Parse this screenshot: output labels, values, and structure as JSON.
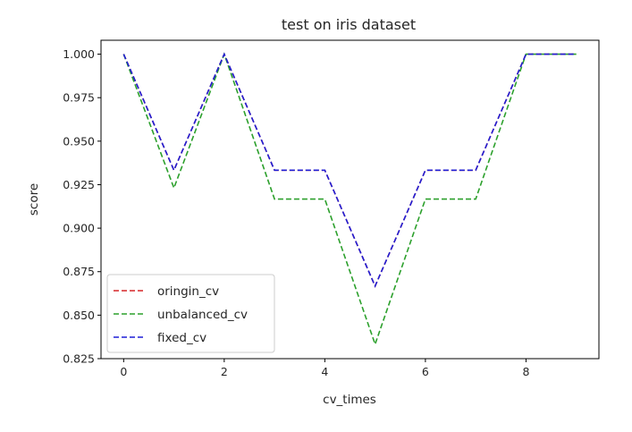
{
  "chart_data": {
    "type": "line",
    "title": "test on iris dataset",
    "xlabel": "cv_times",
    "ylabel": "score",
    "xlim": [
      -0.45,
      9.45
    ],
    "ylim": [
      0.825,
      1.008
    ],
    "xticks": [
      0,
      2,
      4,
      6,
      8
    ],
    "xtick_labels": [
      "0",
      "2",
      "4",
      "6",
      "8"
    ],
    "yticks": [
      0.825,
      0.85,
      0.875,
      0.9,
      0.925,
      0.95,
      0.975,
      1.0
    ],
    "ytick_labels": [
      "0.825",
      "0.850",
      "0.875",
      "0.900",
      "0.925",
      "0.950",
      "0.975",
      "1.000"
    ],
    "grid": false,
    "legend_position": "lower-left",
    "x": [
      0,
      1,
      2,
      3,
      4,
      5,
      6,
      7,
      8,
      9
    ],
    "series": [
      {
        "name": "oringin_cv",
        "color": "#d62728",
        "style": "dashed",
        "values": [
          1.0,
          0.9333,
          1.0,
          0.9333,
          0.9333,
          0.8667,
          0.9333,
          0.9333,
          1.0,
          1.0
        ]
      },
      {
        "name": "unbalanced_cv",
        "color": "#2ca02c",
        "style": "dashed",
        "values": [
          1.0,
          0.9231,
          1.0,
          0.9167,
          0.9167,
          0.8333,
          0.9167,
          0.9167,
          1.0,
          1.0
        ]
      },
      {
        "name": "fixed_cv",
        "color": "#1f1fd6",
        "style": "dashed",
        "values": [
          1.0,
          0.9333,
          1.0,
          0.9333,
          0.9333,
          0.8667,
          0.9333,
          0.9333,
          1.0,
          1.0
        ]
      }
    ]
  }
}
